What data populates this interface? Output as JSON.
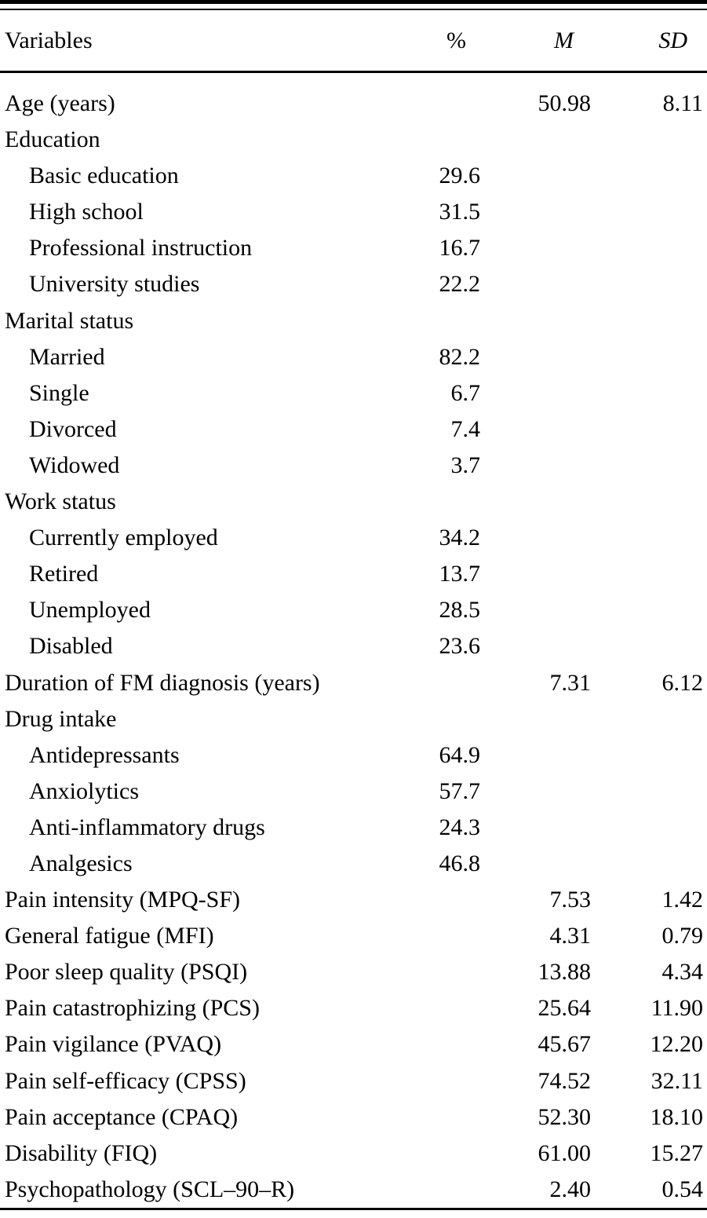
{
  "meta": {
    "description": "Descriptive statistics table from an academic paper (fibromyalgia sample characteristics)",
    "text_color": "#000000",
    "background_color": "#ffffff"
  },
  "table": {
    "columns": {
      "variables": "Variables",
      "percent": "%",
      "mean": "M",
      "sd": "SD"
    },
    "rows": [
      {
        "label": "Age (years)",
        "indent": false,
        "percent": "",
        "m": "50.98",
        "sd": "8.11"
      },
      {
        "label": "Education",
        "indent": false,
        "percent": "",
        "m": "",
        "sd": ""
      },
      {
        "label": "Basic education",
        "indent": true,
        "percent": "29.6",
        "m": "",
        "sd": ""
      },
      {
        "label": "High school",
        "indent": true,
        "percent": "31.5",
        "m": "",
        "sd": ""
      },
      {
        "label": "Professional instruction",
        "indent": true,
        "percent": "16.7",
        "m": "",
        "sd": ""
      },
      {
        "label": "University studies",
        "indent": true,
        "percent": "22.2",
        "m": "",
        "sd": ""
      },
      {
        "label": "Marital status",
        "indent": false,
        "percent": "",
        "m": "",
        "sd": ""
      },
      {
        "label": "Married",
        "indent": true,
        "percent": "82.2",
        "m": "",
        "sd": ""
      },
      {
        "label": "Single",
        "indent": true,
        "percent": "6.7",
        "m": "",
        "sd": ""
      },
      {
        "label": "Divorced",
        "indent": true,
        "percent": "7.4",
        "m": "",
        "sd": ""
      },
      {
        "label": "Widowed",
        "indent": true,
        "percent": "3.7",
        "m": "",
        "sd": ""
      },
      {
        "label": "Work status",
        "indent": false,
        "percent": "",
        "m": "",
        "sd": ""
      },
      {
        "label": "Currently employed",
        "indent": true,
        "percent": "34.2",
        "m": "",
        "sd": ""
      },
      {
        "label": "Retired",
        "indent": true,
        "percent": "13.7",
        "m": "",
        "sd": ""
      },
      {
        "label": "Unemployed",
        "indent": true,
        "percent": "28.5",
        "m": "",
        "sd": ""
      },
      {
        "label": "Disabled",
        "indent": true,
        "percent": "23.6",
        "m": "",
        "sd": ""
      },
      {
        "label": "Duration of FM diagnosis (years)",
        "indent": false,
        "percent": "",
        "m": "7.31",
        "sd": "6.12"
      },
      {
        "label": "Drug intake",
        "indent": false,
        "percent": "",
        "m": "",
        "sd": ""
      },
      {
        "label": "Antidepressants",
        "indent": true,
        "percent": "64.9",
        "m": "",
        "sd": ""
      },
      {
        "label": "Anxiolytics",
        "indent": true,
        "percent": "57.7",
        "m": "",
        "sd": ""
      },
      {
        "label": "Anti-inflammatory drugs",
        "indent": true,
        "percent": "24.3",
        "m": "",
        "sd": ""
      },
      {
        "label": "Analgesics",
        "indent": true,
        "percent": "46.8",
        "m": "",
        "sd": ""
      },
      {
        "label": "Pain intensity (MPQ-SF)",
        "indent": false,
        "percent": "",
        "m": "7.53",
        "sd": "1.42"
      },
      {
        "label": "General fatigue (MFI)",
        "indent": false,
        "percent": "",
        "m": "4.31",
        "sd": "0.79"
      },
      {
        "label": "Poor sleep quality (PSQI)",
        "indent": false,
        "percent": "",
        "m": "13.88",
        "sd": "4.34"
      },
      {
        "label": "Pain catastrophizing (PCS)",
        "indent": false,
        "percent": "",
        "m": "25.64",
        "sd": "11.90"
      },
      {
        "label": "Pain vigilance (PVAQ)",
        "indent": false,
        "percent": "",
        "m": "45.67",
        "sd": "12.20"
      },
      {
        "label": "Pain self-efficacy (CPSS)",
        "indent": false,
        "percent": "",
        "m": "74.52",
        "sd": "32.11"
      },
      {
        "label": "Pain acceptance (CPAQ)",
        "indent": false,
        "percent": "",
        "m": "52.30",
        "sd": "18.10"
      },
      {
        "label": "Disability (FIQ)",
        "indent": false,
        "percent": "",
        "m": "61.00",
        "sd": "15.27"
      },
      {
        "label": "Psychopathology (SCL–90–R)",
        "indent": false,
        "percent": "",
        "m": "2.40",
        "sd": "0.54"
      }
    ]
  }
}
